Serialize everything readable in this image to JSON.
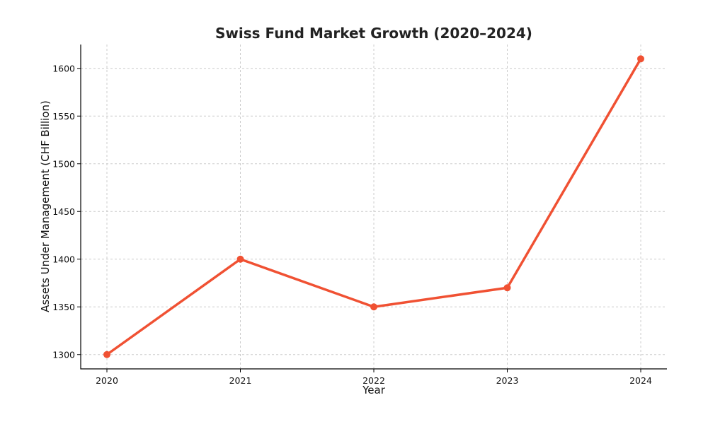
{
  "chart_data": {
    "type": "line",
    "title": "Swiss Fund Market Growth (2020–2024)",
    "xlabel": "Year",
    "ylabel": "Assets Under Management (CHF Billion)",
    "x": [
      "2020",
      "2021",
      "2022",
      "2023",
      "2024"
    ],
    "series": [
      {
        "values": [
          1300,
          1400,
          1350,
          1370,
          1610
        ]
      }
    ],
    "ylim": [
      1285,
      1625
    ],
    "yticks": [
      1300,
      1350,
      1400,
      1450,
      1500,
      1550,
      1600
    ],
    "grid": true,
    "line_style": "dashed-grid",
    "marker": "circle",
    "color": "#f05133"
  }
}
